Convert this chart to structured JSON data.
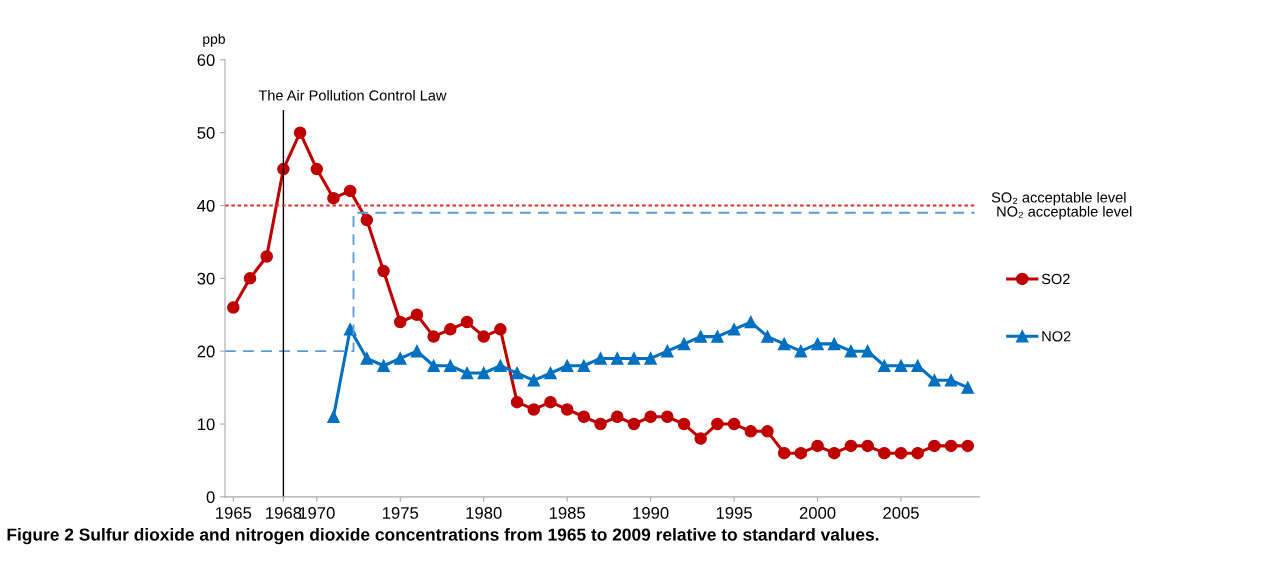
{
  "chart_data": {
    "type": "line",
    "ylabel": "ppb",
    "x": [
      1965,
      1966,
      1967,
      1968,
      1969,
      1970,
      1971,
      1972,
      1973,
      1974,
      1975,
      1976,
      1977,
      1978,
      1979,
      1980,
      1981,
      1982,
      1983,
      1984,
      1985,
      1986,
      1987,
      1988,
      1989,
      1990,
      1991,
      1992,
      1993,
      1994,
      1995,
      1996,
      1997,
      1998,
      1999,
      2000,
      2001,
      2002,
      2003,
      2004,
      2005,
      2006,
      2007,
      2008,
      2009
    ],
    "series": [
      {
        "name": "SO2",
        "color": "#c00000",
        "marker": "circle",
        "values": [
          26,
          30,
          33,
          45,
          50,
          45,
          41,
          42,
          38,
          31,
          24,
          25,
          22,
          23,
          24,
          22,
          23,
          13,
          12,
          13,
          12,
          11,
          10,
          11,
          10,
          11,
          11,
          10,
          8,
          10,
          10,
          9,
          9,
          6,
          6,
          7,
          6,
          7,
          7,
          6,
          6,
          6,
          7,
          7,
          7
        ]
      },
      {
        "name": "NO2",
        "color": "#0070c0",
        "marker": "triangle",
        "values": [
          null,
          null,
          null,
          null,
          null,
          null,
          11,
          23,
          19,
          18,
          19,
          20,
          18,
          18,
          17,
          17,
          18,
          17,
          16,
          17,
          18,
          18,
          19,
          19,
          19,
          19,
          20,
          21,
          22,
          22,
          23,
          24,
          22,
          21,
          20,
          21,
          21,
          20,
          20,
          18,
          18,
          18,
          16,
          16,
          15
        ]
      },
      {
        "name": "NO₂ acceptable level",
        "color": "#5b9bd5",
        "marker": "none",
        "line_style": "dashed",
        "x": [
          1964.5,
          1972.2,
          1972.2,
          2009.4
        ],
        "values": [
          20,
          20,
          39,
          39
        ]
      }
    ],
    "xlim": [
      1964.5,
      2009.7
    ],
    "xticks": [
      1965,
      1968,
      1970,
      1975,
      1980,
      1985,
      1990,
      1995,
      2000,
      2005
    ],
    "ylim": [
      0,
      60
    ],
    "yticks": [
      0,
      10,
      20,
      30,
      40,
      50,
      60
    ],
    "ref_lines": [
      {
        "axis": "x",
        "value": 1968,
        "label": "The Air Pollution Control Law",
        "color": "#000000",
        "line_style": "solid"
      },
      {
        "axis": "y",
        "value": 40,
        "label": "SO₂ acceptable level",
        "color": "#e03030",
        "line_style": "dotted"
      }
    ],
    "legend": "right",
    "grid": false,
    "annotations": [
      "Figure 2 Sulfur dioxide and nitrogen dioxide concentrations from 1965 to 2009 relative to standard values."
    ]
  }
}
